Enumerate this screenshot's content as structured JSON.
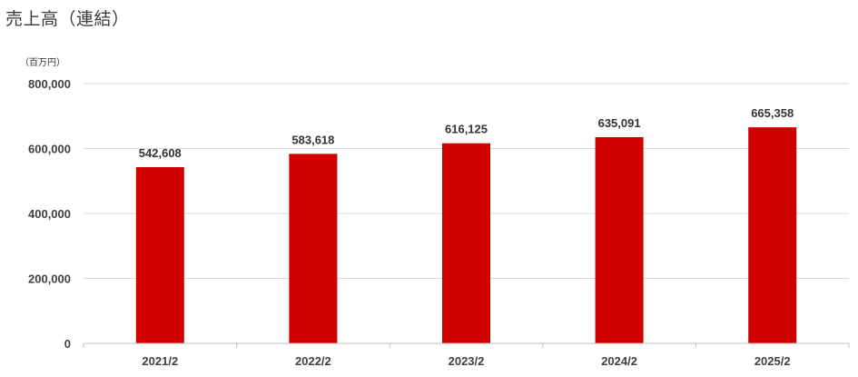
{
  "title": "売上高（連結）",
  "unit": "（百万円）",
  "colors": {
    "bar": "#d00000",
    "grid": "#d9d9d9",
    "axis": "#bfbfbf"
  },
  "chart_data": {
    "type": "bar",
    "title": "売上高（連結）",
    "ylabel": "（百万円）",
    "xlabel": "",
    "categories": [
      "2021/2",
      "2022/2",
      "2023/2",
      "2024/2",
      "2025/2"
    ],
    "values": [
      542608,
      583618,
      616125,
      635091,
      665358
    ],
    "value_labels": [
      "542,608",
      "583,618",
      "616,125",
      "635,091",
      "665,358"
    ],
    "ylim": [
      0,
      800000
    ],
    "yticks": [
      0,
      200000,
      400000,
      600000,
      800000
    ],
    "ytick_labels": [
      "0",
      "200,000",
      "400,000",
      "600,000",
      "800,000"
    ],
    "grid": true,
    "legend": "none"
  }
}
